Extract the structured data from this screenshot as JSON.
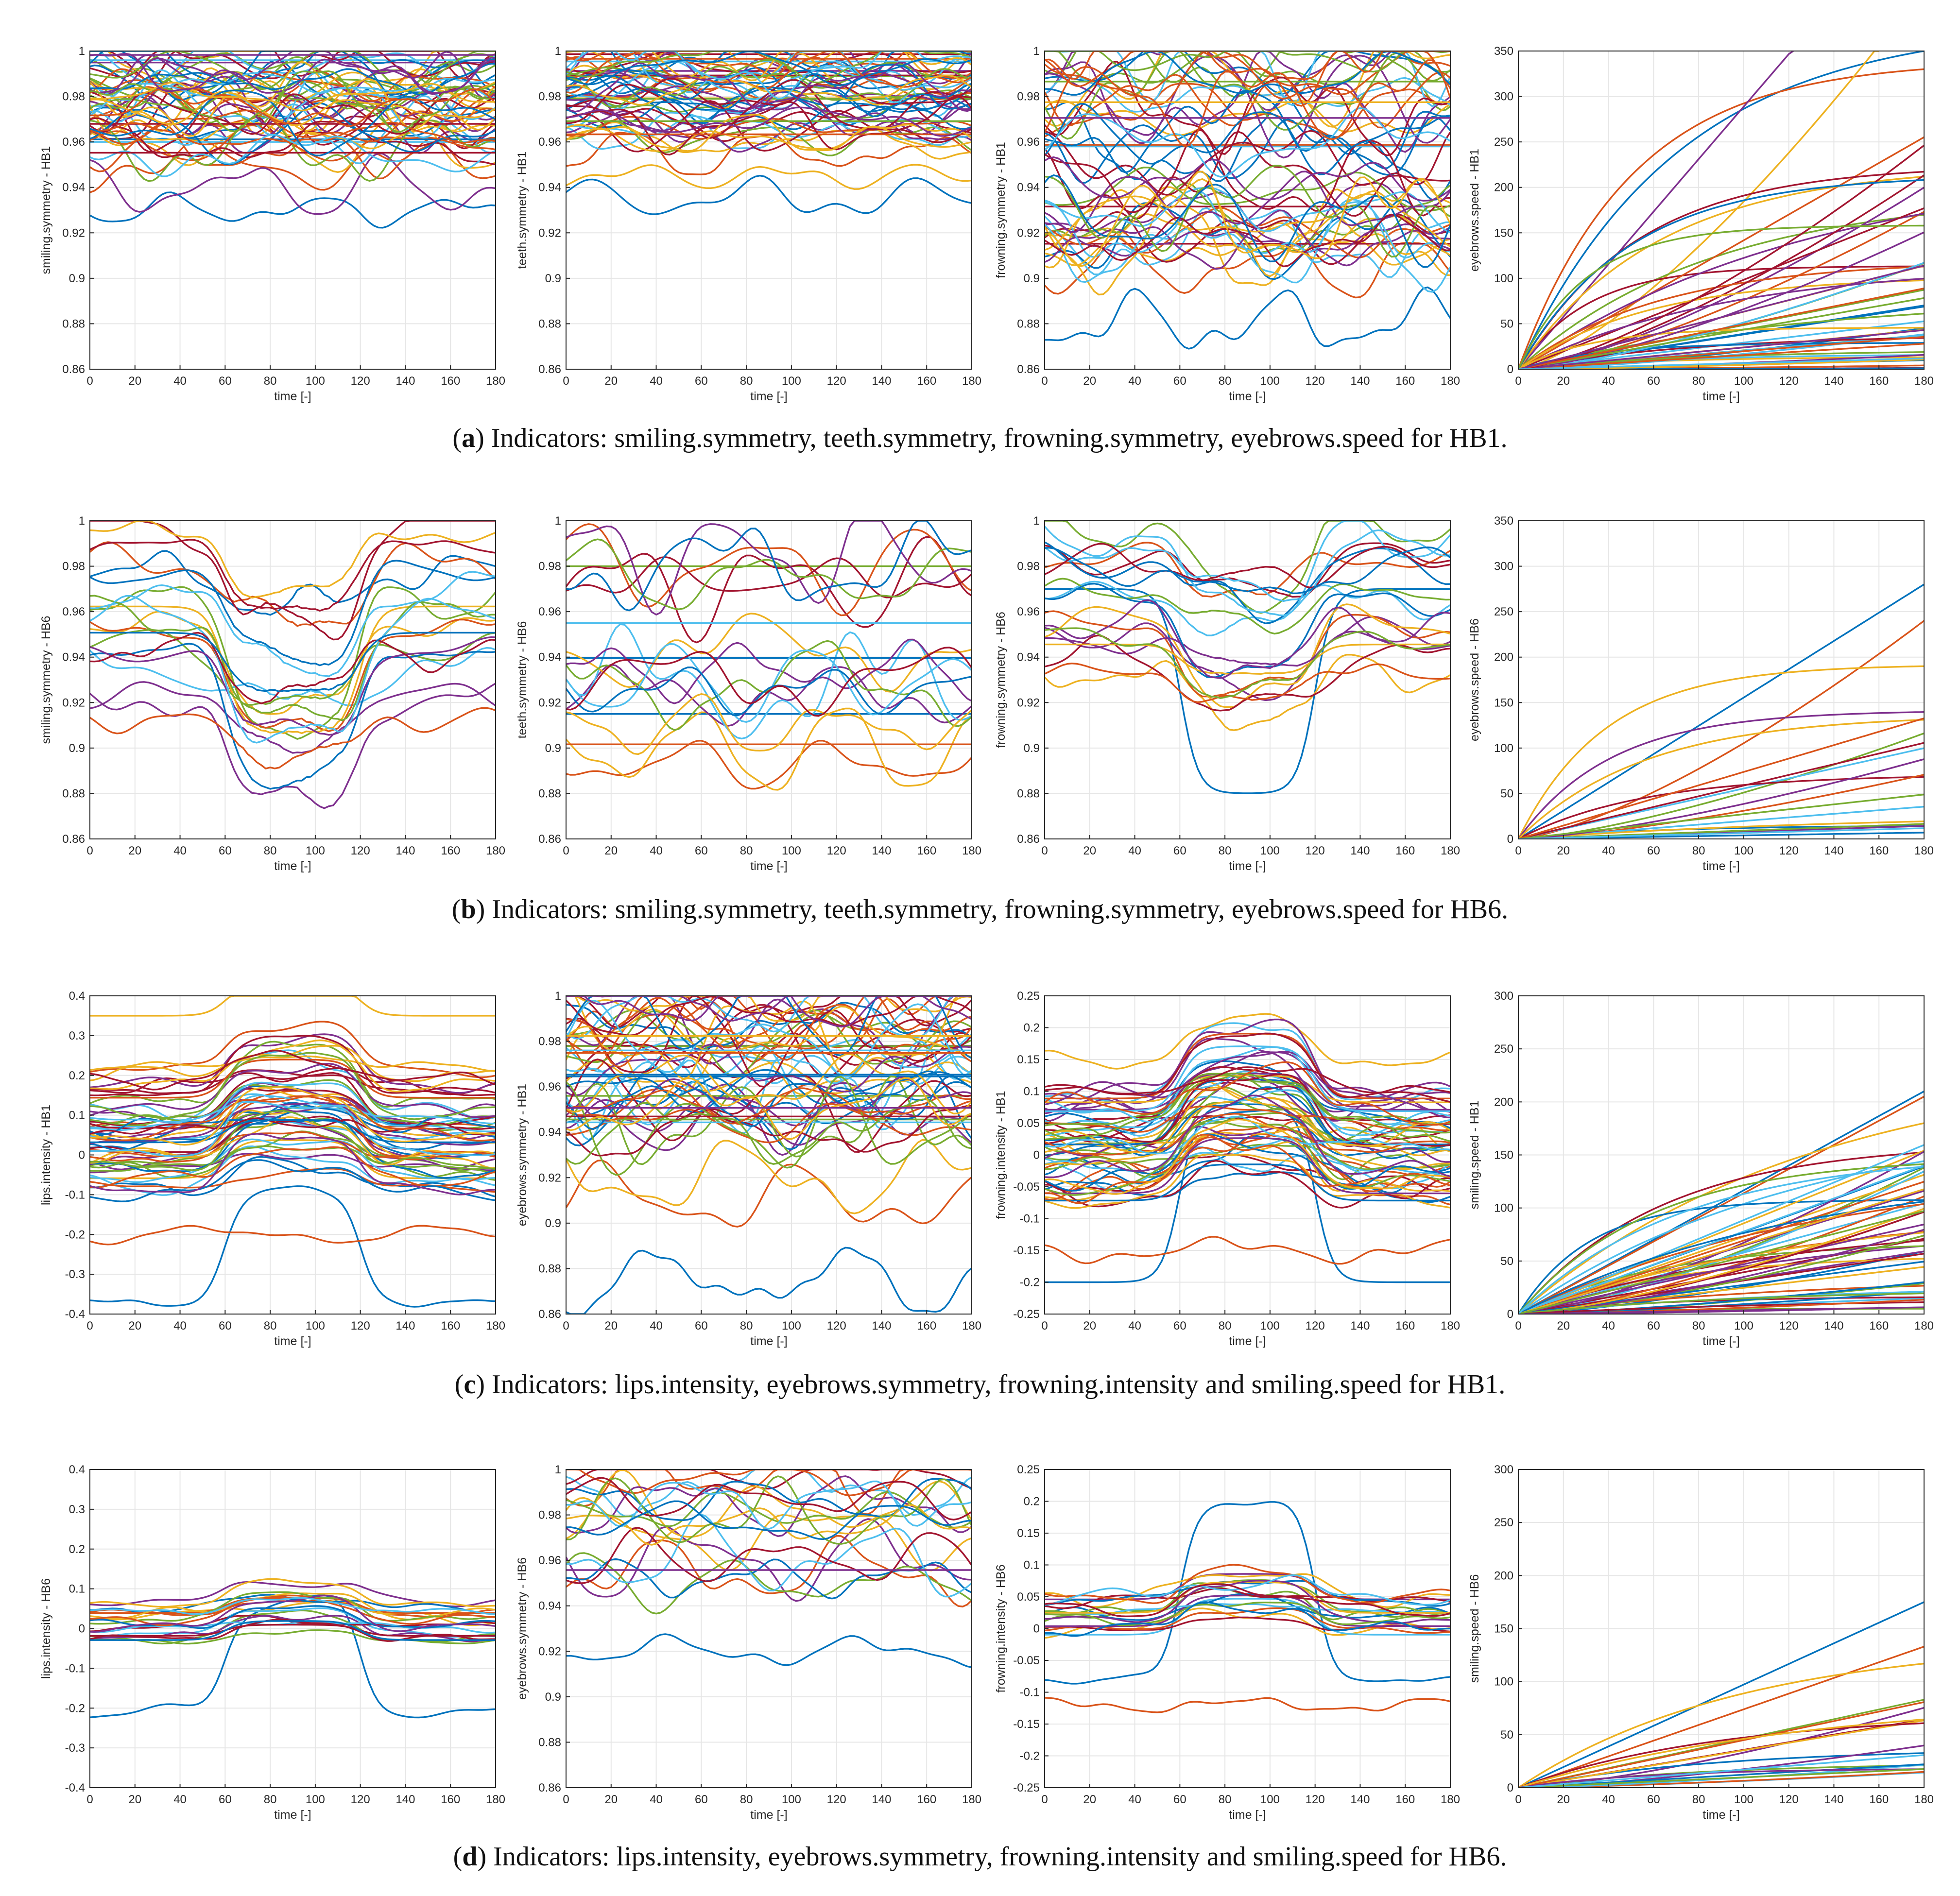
{
  "colors": [
    "#0072BD",
    "#D95319",
    "#EDB120",
    "#7E2F8E",
    "#77AC30",
    "#4DBEEE",
    "#A2142F"
  ],
  "captions": [
    {
      "letter": "a",
      "text": "Indicators: smiling.symmetry, teeth.symmetry, frowning.symmetry, eyebrows.speed for HB1."
    },
    {
      "letter": "b",
      "text": "Indicators: smiling.symmetry, teeth.symmetry, frowning.symmetry, eyebrows.speed for HB6."
    },
    {
      "letter": "c",
      "text": "Indicators: lips.intensity, eyebrows.symmetry, frowning.intensity and smiling.speed for HB1."
    },
    {
      "letter": "d",
      "text": "Indicators: lips.intensity, eyebrows.symmetry, frowning.intensity and smiling.speed for HB6."
    }
  ],
  "chart_data": [
    {
      "id": "a1",
      "type": "line",
      "ylabel": "smiling.symmetry - HB1",
      "xlabel": "time [-]",
      "xlim": [
        0,
        180
      ],
      "ylim": [
        0.86,
        1
      ],
      "xticks": [
        0,
        20,
        40,
        60,
        80,
        100,
        120,
        140,
        160,
        180
      ],
      "yticks": [
        "0.86",
        "0.88",
        "0.9",
        "0.92",
        "0.94",
        "0.96",
        "0.98",
        "1"
      ],
      "pattern": "noisy",
      "n_series": 60,
      "band": [
        0.955,
        1.0
      ],
      "outliers": [
        0.93,
        0.95,
        0.96,
        0.94
      ],
      "amp": 0.012
    },
    {
      "id": "a2",
      "type": "line",
      "ylabel": "teeth.symmetry - HB1",
      "xlabel": "time [-]",
      "xlim": [
        0,
        180
      ],
      "ylim": [
        0.86,
        1
      ],
      "xticks": [
        0,
        20,
        40,
        60,
        80,
        100,
        120,
        140,
        160,
        180
      ],
      "yticks": [
        "0.86",
        "0.88",
        "0.9",
        "0.92",
        "0.94",
        "0.96",
        "0.98",
        "1"
      ],
      "pattern": "noisy",
      "n_series": 60,
      "band": [
        0.96,
        1.0
      ],
      "outliers": [
        0.935,
        0.955,
        0.945
      ],
      "amp": 0.01
    },
    {
      "id": "a3",
      "type": "line",
      "ylabel": "frowning.symmetry - HB1",
      "xlabel": "time [-]",
      "xlim": [
        0,
        180
      ],
      "ylim": [
        0.86,
        1
      ],
      "xticks": [
        0,
        20,
        40,
        60,
        80,
        100,
        120,
        140,
        160,
        180
      ],
      "yticks": [
        "0.86",
        "0.88",
        "0.9",
        "0.92",
        "0.94",
        "0.96",
        "0.98",
        "1"
      ],
      "pattern": "noisy",
      "n_series": 60,
      "band": [
        0.91,
        1.0
      ],
      "outliers": [
        0.88,
        0.905,
        0.915
      ],
      "amp": 0.018
    },
    {
      "id": "a4",
      "type": "line",
      "ylabel": "eyebrows.speed - HB1",
      "xlabel": "time [-]",
      "xlim": [
        0,
        180
      ],
      "ylim": [
        0,
        350
      ],
      "xticks": [
        0,
        20,
        40,
        60,
        80,
        100,
        120,
        140,
        160,
        180
      ],
      "yticks": [
        "0",
        "50",
        "100",
        "150",
        "200",
        "250",
        "300",
        "350"
      ],
      "pattern": "cumulative",
      "n_series": 55,
      "final_range": [
        0,
        260
      ],
      "extra_finals": [
        350,
        330,
        420,
        520
      ]
    },
    {
      "id": "b1",
      "type": "line",
      "ylabel": "smiling.symmetry - HB6",
      "xlabel": "time [-]",
      "xlim": [
        0,
        180
      ],
      "ylim": [
        0.86,
        1
      ],
      "xticks": [
        0,
        20,
        40,
        60,
        80,
        100,
        120,
        140,
        160,
        180
      ],
      "yticks": [
        "0.86",
        "0.88",
        "0.9",
        "0.92",
        "0.94",
        "0.96",
        "0.98",
        "1"
      ],
      "pattern": "dip",
      "n_series": 22,
      "band": [
        0.91,
        1.0
      ],
      "dip": 0.05,
      "amp": 0.008
    },
    {
      "id": "b2",
      "type": "line",
      "ylabel": "teeth.symmetry - HB6",
      "xlabel": "time [-]",
      "xlim": [
        0,
        180
      ],
      "ylim": [
        0.86,
        1
      ],
      "xticks": [
        0,
        20,
        40,
        60,
        80,
        100,
        120,
        140,
        160,
        180
      ],
      "yticks": [
        "0.86",
        "0.88",
        "0.9",
        "0.92",
        "0.94",
        "0.96",
        "0.98",
        "1"
      ],
      "pattern": "noisy",
      "n_series": 22,
      "band": [
        0.89,
        1.0
      ],
      "outliers": [
        0.915
      ],
      "amp": 0.02
    },
    {
      "id": "b3",
      "type": "line",
      "ylabel": "frowning.symmetry - HB6",
      "xlabel": "time [-]",
      "xlim": [
        0,
        180
      ],
      "ylim": [
        0.86,
        1
      ],
      "xticks": [
        0,
        20,
        40,
        60,
        80,
        100,
        120,
        140,
        160,
        180
      ],
      "yticks": [
        "0.86",
        "0.88",
        "0.9",
        "0.92",
        "0.94",
        "0.96",
        "0.98",
        "1"
      ],
      "pattern": "dip",
      "n_series": 22,
      "band": [
        0.93,
        1.0
      ],
      "dip": 0.025,
      "amp": 0.008,
      "plateau": 0.88
    },
    {
      "id": "b4",
      "type": "line",
      "ylabel": "eyebrows.speed - HB6",
      "xlabel": "time [-]",
      "xlim": [
        0,
        180
      ],
      "ylim": [
        0,
        350
      ],
      "xticks": [
        0,
        20,
        40,
        60,
        80,
        100,
        120,
        140,
        160,
        180
      ],
      "yticks": [
        "0",
        "50",
        "100",
        "150",
        "200",
        "250",
        "300",
        "350"
      ],
      "pattern": "cumulative",
      "n_series": 20,
      "final_range": [
        0,
        160
      ],
      "extra_finals": [
        280,
        240,
        190
      ]
    },
    {
      "id": "c1",
      "type": "line",
      "ylabel": "lips.intensity - HB1",
      "xlabel": "time [-]",
      "xlim": [
        0,
        180
      ],
      "ylim": [
        -0.4,
        0.4
      ],
      "xticks": [
        0,
        20,
        40,
        60,
        80,
        100,
        120,
        140,
        160,
        180
      ],
      "yticks": [
        "-0.4",
        "-0.3",
        "-0.2",
        "-0.1",
        "0",
        "0.1",
        "0.2",
        "0.3",
        "0.4"
      ],
      "pattern": "bump",
      "n_series": 60,
      "band": [
        -0.1,
        0.22
      ],
      "bump": 0.12,
      "amp": 0.02,
      "outliers": [
        -0.37,
        -0.2,
        0.35
      ]
    },
    {
      "id": "c2",
      "type": "line",
      "ylabel": "eyebrows.symmetry - HB1",
      "xlabel": "time [-]",
      "xlim": [
        0,
        180
      ],
      "ylim": [
        0.86,
        1
      ],
      "xticks": [
        0,
        20,
        40,
        60,
        80,
        100,
        120,
        140,
        160,
        180
      ],
      "yticks": [
        "0.86",
        "0.88",
        "0.9",
        "0.92",
        "0.94",
        "0.96",
        "0.98",
        "1"
      ],
      "pattern": "noisy",
      "n_series": 60,
      "band": [
        0.94,
        1.0
      ],
      "outliers": [
        0.875,
        0.91,
        0.92
      ],
      "amp": 0.016
    },
    {
      "id": "c3",
      "type": "line",
      "ylabel": "frowning.intensity - HB1",
      "xlabel": "time [-]",
      "xlim": [
        0,
        180
      ],
      "ylim": [
        -0.25,
        0.25
      ],
      "xticks": [
        0,
        20,
        40,
        60,
        80,
        100,
        120,
        140,
        160,
        180
      ],
      "yticks": [
        "-0.25",
        "-0.2",
        "-0.15",
        "-0.1",
        "-0.05",
        "0",
        "0.05",
        "0.1",
        "0.15",
        "0.2",
        "0.25"
      ],
      "pattern": "bump",
      "n_series": 60,
      "band": [
        -0.08,
        0.1
      ],
      "bump": 0.09,
      "amp": 0.02,
      "outliers": [
        -0.2,
        -0.15,
        0.15
      ]
    },
    {
      "id": "c4",
      "type": "line",
      "ylabel": "smiling.speed - HB1",
      "xlabel": "time [-]",
      "xlim": [
        0,
        180
      ],
      "ylim": [
        0,
        300
      ],
      "xticks": [
        0,
        20,
        40,
        60,
        80,
        100,
        120,
        140,
        160,
        180
      ],
      "yticks": [
        "0",
        "50",
        "100",
        "150",
        "200",
        "250",
        "300"
      ],
      "pattern": "cumulative",
      "n_series": 55,
      "final_range": [
        5,
        160
      ],
      "extra_finals": [
        210,
        205,
        180
      ]
    },
    {
      "id": "d1",
      "type": "line",
      "ylabel": "lips.intensity - HB6",
      "xlabel": "time [-]",
      "xlim": [
        0,
        180
      ],
      "ylim": [
        -0.4,
        0.4
      ],
      "xticks": [
        0,
        20,
        40,
        60,
        80,
        100,
        120,
        140,
        160,
        180
      ],
      "yticks": [
        "-0.4",
        "-0.3",
        "-0.2",
        "-0.1",
        "0",
        "0.1",
        "0.2",
        "0.3",
        "0.4"
      ],
      "pattern": "bump",
      "n_series": 22,
      "band": [
        -0.03,
        0.08
      ],
      "bump": 0.06,
      "amp": 0.015,
      "outliers": [
        -0.21
      ]
    },
    {
      "id": "d2",
      "type": "line",
      "ylabel": "eyebrows.symmetry - HB6",
      "xlabel": "time [-]",
      "xlim": [
        0,
        180
      ],
      "ylim": [
        0.86,
        1
      ],
      "xticks": [
        0,
        20,
        40,
        60,
        80,
        100,
        120,
        140,
        160,
        180
      ],
      "yticks": [
        "0.86",
        "0.88",
        "0.9",
        "0.92",
        "0.94",
        "0.96",
        "0.98",
        "1"
      ],
      "pattern": "noisy",
      "n_series": 22,
      "band": [
        0.95,
        1.0
      ],
      "outliers": [
        0.92,
        0.955
      ],
      "amp": 0.014
    },
    {
      "id": "d3",
      "type": "line",
      "ylabel": "frowning.intensity - HB6",
      "xlabel": "time [-]",
      "xlim": [
        0,
        180
      ],
      "ylim": [
        -0.25,
        0.25
      ],
      "xticks": [
        0,
        20,
        40,
        60,
        80,
        100,
        120,
        140,
        160,
        180
      ],
      "yticks": [
        "-0.25",
        "-0.2",
        "-0.15",
        "-0.1",
        "-0.05",
        "0",
        "0.05",
        "0.1",
        "0.15",
        "0.2",
        "0.25"
      ],
      "pattern": "bump",
      "n_series": 22,
      "band": [
        -0.01,
        0.05
      ],
      "bump": 0.05,
      "amp": 0.012,
      "outliers": [
        -0.08,
        -0.12
      ]
    },
    {
      "id": "d4",
      "type": "line",
      "ylabel": "smiling.speed - HB6",
      "xlabel": "time [-]",
      "xlim": [
        0,
        180
      ],
      "ylim": [
        0,
        300
      ],
      "xticks": [
        0,
        20,
        40,
        60,
        80,
        100,
        120,
        140,
        160,
        180
      ],
      "yticks": [
        "0",
        "50",
        "100",
        "150",
        "200",
        "250",
        "300"
      ],
      "pattern": "cumulative",
      "n_series": 20,
      "final_range": [
        10,
        90
      ],
      "extra_finals": [
        175,
        133,
        117
      ]
    }
  ]
}
